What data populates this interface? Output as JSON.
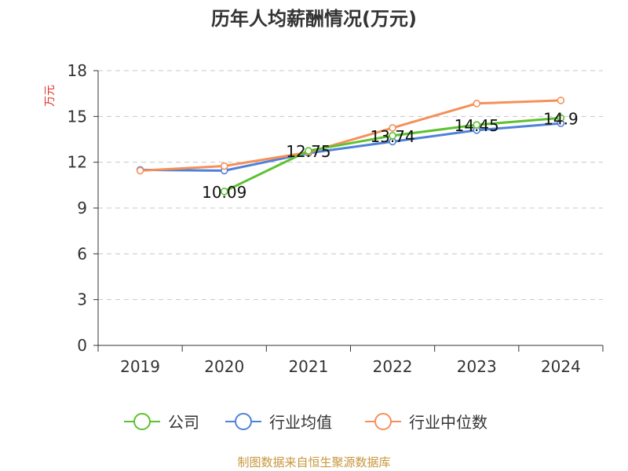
{
  "chart_data": {
    "type": "line",
    "title": "历年人均薪酬情况(万元)",
    "ylabel": "万元",
    "xlabel": "",
    "ylim": [
      0,
      18
    ],
    "yticks": [
      0,
      3,
      6,
      9,
      12,
      15,
      18
    ],
    "categories": [
      "2019",
      "2020",
      "2021",
      "2022",
      "2023",
      "2024"
    ],
    "grid": true,
    "legend_position": "bottom",
    "series": [
      {
        "name": "公司",
        "color": "#5ec130",
        "values": [
          null,
          10.09,
          12.75,
          13.74,
          14.45,
          14.9
        ],
        "labels": [
          "",
          "10.09",
          "12.75",
          "13.74",
          "14.45",
          "14.9"
        ]
      },
      {
        "name": "行业均值",
        "color": "#5081d8",
        "values": [
          11.5,
          11.45,
          12.6,
          13.35,
          14.1,
          14.55
        ]
      },
      {
        "name": "行业中位数",
        "color": "#f5905a",
        "values": [
          11.45,
          11.75,
          12.65,
          14.25,
          15.85,
          16.05
        ]
      }
    ],
    "source": "制图数据来自恒生聚源数据库"
  }
}
